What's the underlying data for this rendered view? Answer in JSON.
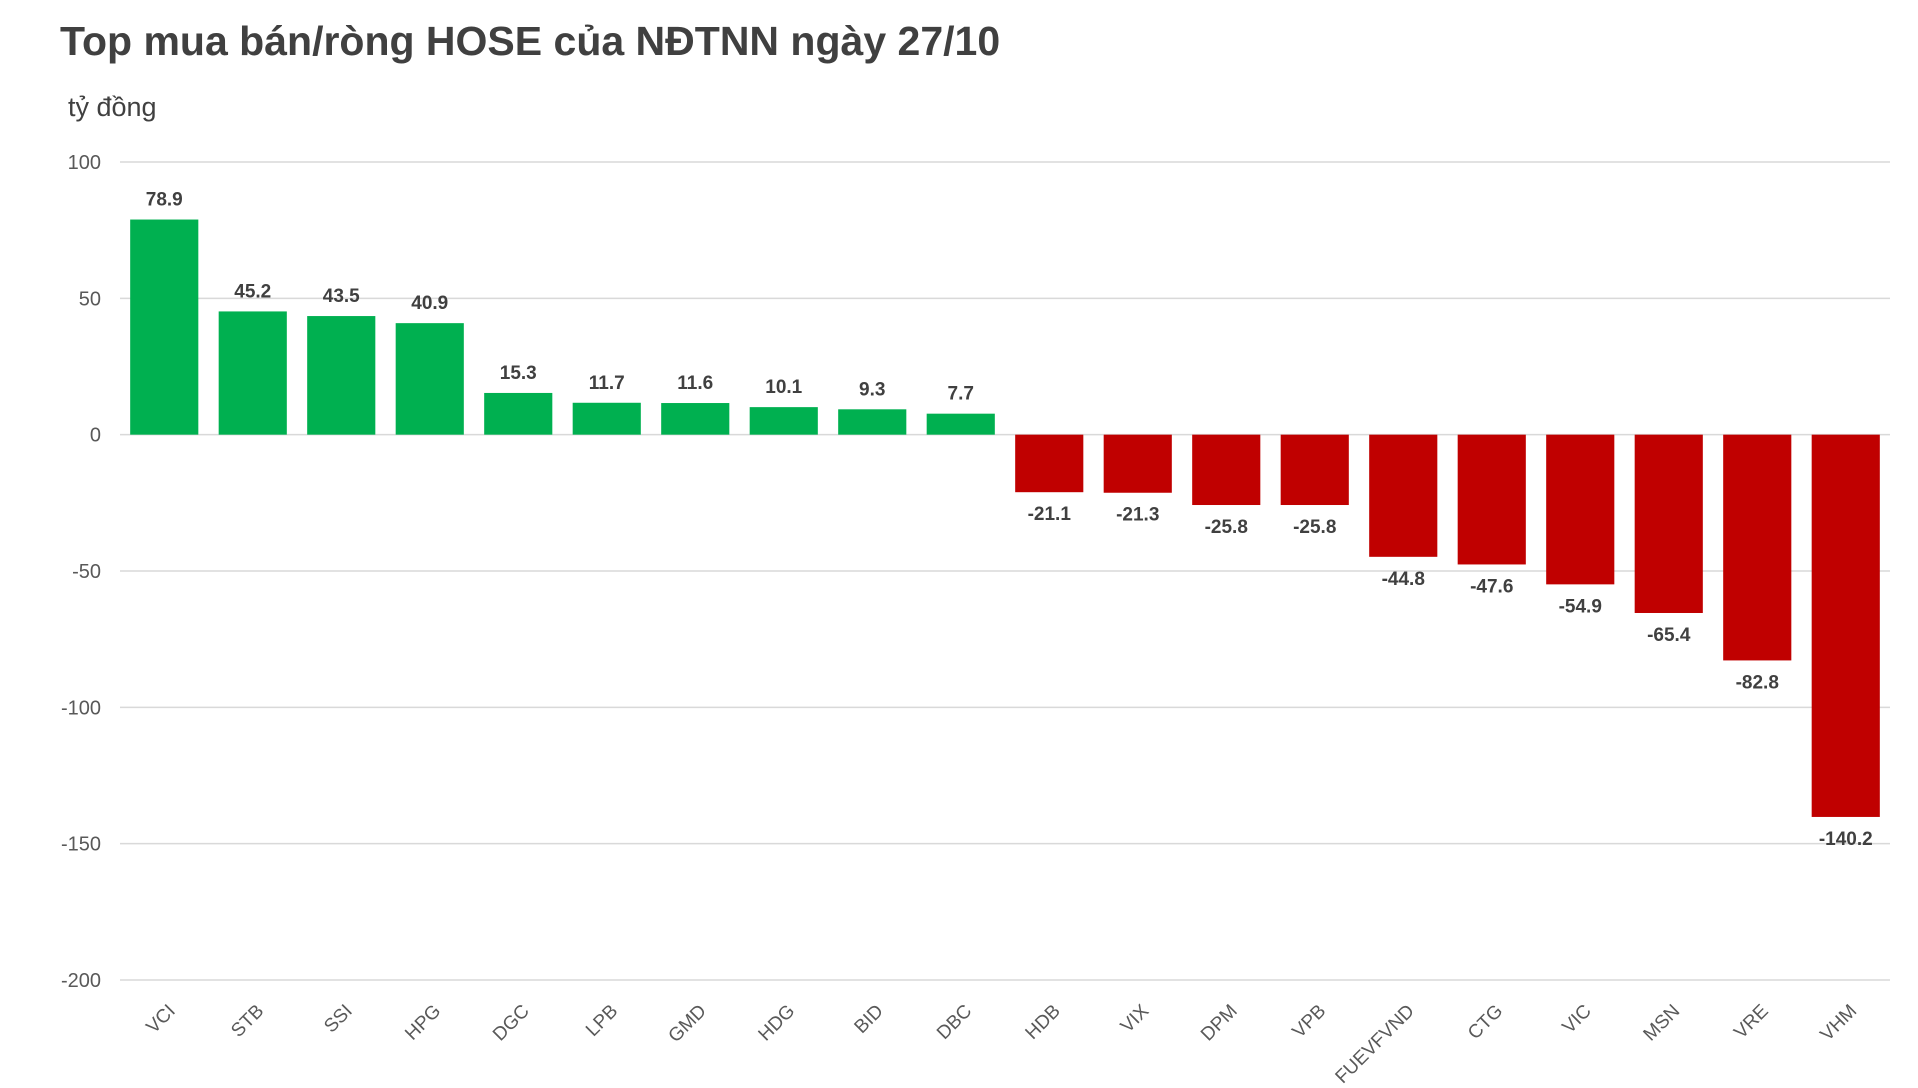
{
  "title": "Top mua bán/ròng HOSE của NĐTNN ngày 27/10",
  "unit_label": "tỷ đồng",
  "colors": {
    "positive": "#00b050",
    "negative": "#c00000",
    "grid": "#d9d9d9",
    "text": "#404040"
  },
  "chart_data": {
    "type": "bar",
    "title": "Top mua bán/ròng HOSE của NĐTNN ngày 27/10",
    "ylabel": "tỷ đồng",
    "xlabel": "",
    "ylim": [
      -200,
      100
    ],
    "yticks": [
      100,
      50,
      0,
      -50,
      -100,
      -150,
      -200
    ],
    "grid": true,
    "categories": [
      "VCI",
      "STB",
      "SSI",
      "HPG",
      "DGC",
      "LPB",
      "GMD",
      "HDG",
      "BID",
      "DBC",
      "HDB",
      "VIX",
      "DPM",
      "VPB",
      "FUEVFVND",
      "CTG",
      "VIC",
      "MSN",
      "VRE",
      "VHM"
    ],
    "values": [
      78.9,
      45.2,
      43.5,
      40.9,
      15.3,
      11.7,
      11.6,
      10.1,
      9.3,
      7.7,
      -21.1,
      -21.3,
      -25.8,
      -25.8,
      -44.8,
      -47.6,
      -54.9,
      -65.4,
      -82.8,
      -140.2
    ]
  }
}
